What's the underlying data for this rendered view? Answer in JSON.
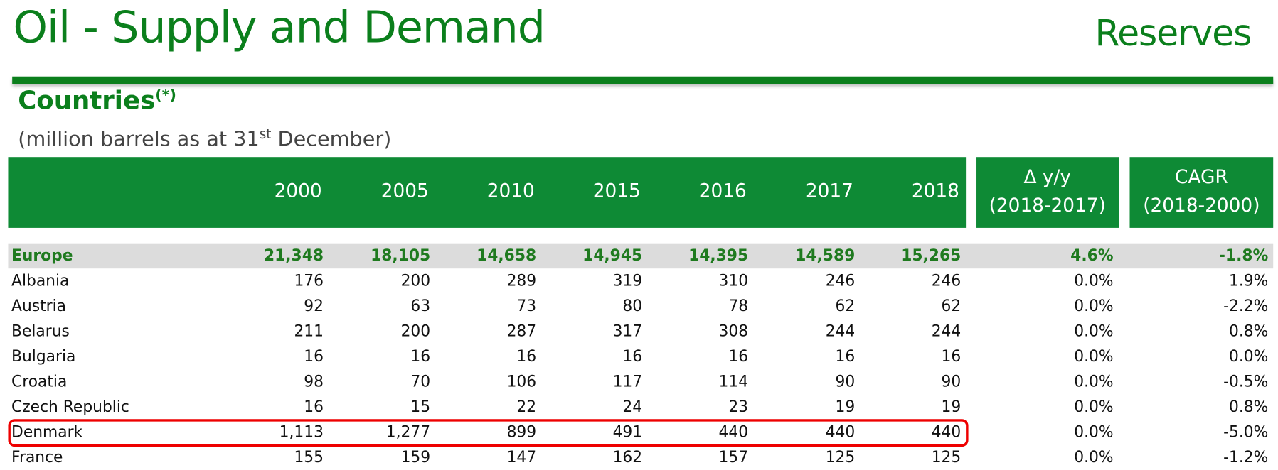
{
  "header": {
    "title": "Oil - Supply and Demand",
    "section": "Reserves"
  },
  "subheader": {
    "title": "Countries",
    "title_note": "(*)",
    "unit_before": "(million barrels as at 31",
    "unit_sup": "st",
    "unit_after": " December)"
  },
  "table": {
    "columns": [
      "2000",
      "2005",
      "2010",
      "2015",
      "2016",
      "2017",
      "2018"
    ],
    "extra_columns": [
      {
        "line1": "Δ y/y",
        "line2": "(2018-2017)"
      },
      {
        "line1": "CAGR",
        "line2": "(2018-2000)"
      }
    ],
    "rows": [
      {
        "name": "Europe",
        "values": [
          "21,348",
          "18,105",
          "14,658",
          "14,945",
          "14,395",
          "14,589",
          "15,265"
        ],
        "yoy": "4.6%",
        "cagr": "-1.8%",
        "total": true
      },
      {
        "name": "Albania",
        "values": [
          "176",
          "200",
          "289",
          "319",
          "310",
          "246",
          "246"
        ],
        "yoy": "0.0%",
        "cagr": "1.9%"
      },
      {
        "name": "Austria",
        "values": [
          "92",
          "63",
          "73",
          "80",
          "78",
          "62",
          "62"
        ],
        "yoy": "0.0%",
        "cagr": "-2.2%"
      },
      {
        "name": "Belarus",
        "values": [
          "211",
          "200",
          "287",
          "317",
          "308",
          "244",
          "244"
        ],
        "yoy": "0.0%",
        "cagr": "0.8%"
      },
      {
        "name": "Bulgaria",
        "values": [
          "16",
          "16",
          "16",
          "16",
          "16",
          "16",
          "16"
        ],
        "yoy": "0.0%",
        "cagr": "0.0%"
      },
      {
        "name": "Croatia",
        "values": [
          "98",
          "70",
          "106",
          "117",
          "114",
          "90",
          "90"
        ],
        "yoy": "0.0%",
        "cagr": "-0.5%"
      },
      {
        "name": "Czech Republic",
        "values": [
          "16",
          "15",
          "22",
          "24",
          "23",
          "19",
          "19"
        ],
        "yoy": "0.0%",
        "cagr": "0.8%"
      },
      {
        "name": "Denmark",
        "values": [
          "1,113",
          "1,277",
          "899",
          "491",
          "440",
          "440",
          "440"
        ],
        "yoy": "0.0%",
        "cagr": "-5.0%",
        "highlighted": true
      },
      {
        "name": "France",
        "values": [
          "155",
          "159",
          "147",
          "162",
          "157",
          "125",
          "125"
        ],
        "yoy": "0.0%",
        "cagr": "-1.2%"
      }
    ]
  }
}
